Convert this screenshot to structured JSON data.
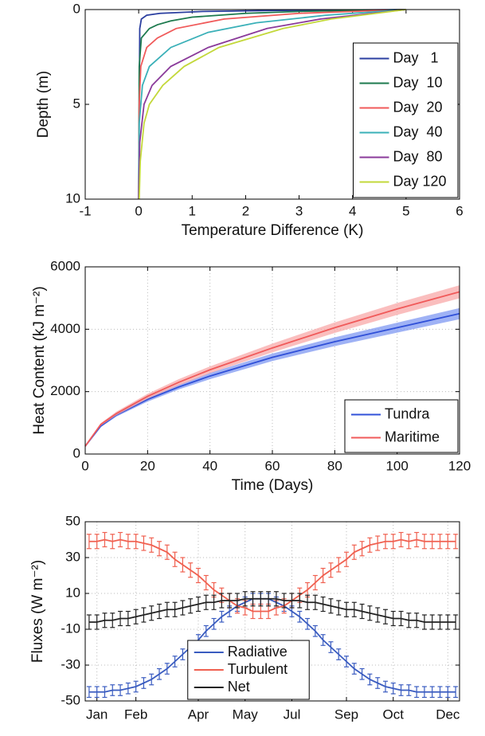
{
  "chart_data": [
    {
      "type": "line",
      "xlabel": "Temperature Difference (K)",
      "ylabel": "Depth (m)",
      "xlim": [
        -1,
        6
      ],
      "xticks": [
        -1,
        0,
        1,
        2,
        3,
        4,
        5,
        6
      ],
      "ylim": [
        10,
        0
      ],
      "yticks": [
        0,
        5,
        10
      ],
      "grid": false,
      "legend": "lower right",
      "series": [
        {
          "name": "Day   1",
          "color": "#2b3fa0",
          "x": [
            5,
            2.5,
            1.2,
            0.4,
            0.15,
            0.05,
            0.02,
            0
          ],
          "values": [
            0,
            0.05,
            0.1,
            0.2,
            0.3,
            0.5,
            1,
            10
          ]
        },
        {
          "name": "Day  10",
          "color": "#1d7a4e",
          "x": [
            5,
            3,
            2,
            1,
            0.6,
            0.35,
            0.2,
            0.05,
            0.01,
            0
          ],
          "values": [
            0,
            0.1,
            0.2,
            0.4,
            0.6,
            0.8,
            1,
            1.5,
            3,
            10
          ]
        },
        {
          "name": "Day  20",
          "color": "#f05a5a",
          "x": [
            5,
            3,
            1.6,
            0.7,
            0.35,
            0.15,
            0.04,
            0.01,
            0
          ],
          "values": [
            0,
            0.2,
            0.5,
            1,
            1.5,
            2,
            3,
            5,
            10
          ]
        },
        {
          "name": "Day  40",
          "color": "#3ab0b8",
          "x": [
            5,
            3.5,
            2.2,
            1.3,
            0.6,
            0.2,
            0.07,
            0.01,
            0
          ],
          "values": [
            0,
            0.3,
            0.7,
            1.2,
            2,
            3,
            4,
            6,
            10
          ]
        },
        {
          "name": "Day  80",
          "color": "#8a3a9a",
          "x": [
            5,
            3.4,
            2.4,
            1.3,
            0.6,
            0.25,
            0.1,
            0.02,
            0
          ],
          "values": [
            0,
            0.5,
            1,
            2,
            3,
            4,
            5,
            7,
            10
          ]
        },
        {
          "name": "Day 120",
          "color": "#c3d83a",
          "x": [
            5,
            3.6,
            2.7,
            1.5,
            0.85,
            0.45,
            0.2,
            0.1,
            0.03,
            0.01
          ],
          "values": [
            0,
            0.5,
            1,
            2,
            3,
            4,
            5,
            6,
            8,
            10
          ]
        }
      ]
    },
    {
      "type": "line",
      "xlabel": "Time (Days)",
      "ylabel": "Heat Content (kJ m⁻²)",
      "xlim": [
        0,
        120
      ],
      "xticks": [
        0,
        20,
        40,
        60,
        80,
        100,
        120
      ],
      "ylim": [
        0,
        6000
      ],
      "yticks": [
        0,
        2000,
        4000,
        6000
      ],
      "grid": true,
      "legend": "lower right",
      "x": [
        0,
        5,
        10,
        20,
        30,
        40,
        60,
        80,
        100,
        120
      ],
      "series": [
        {
          "name": "Tundra",
          "color": "#3050d8",
          "band_color": "#7f98f2",
          "values": [
            250,
            900,
            1250,
            1750,
            2150,
            2500,
            3100,
            3600,
            4050,
            4500
          ],
          "lower": [
            230,
            860,
            1200,
            1680,
            2070,
            2400,
            2980,
            3460,
            3890,
            4320
          ],
          "upper": [
            270,
            940,
            1300,
            1820,
            2230,
            2600,
            3220,
            3740,
            4210,
            4680
          ]
        },
        {
          "name": "Maritime",
          "color": "#f05a5a",
          "band_color": "#f8a8a8",
          "values": [
            250,
            950,
            1300,
            1850,
            2300,
            2700,
            3400,
            4050,
            4650,
            5200
          ],
          "lower": [
            230,
            910,
            1240,
            1770,
            2200,
            2590,
            3260,
            3880,
            4460,
            4990
          ],
          "upper": [
            270,
            990,
            1360,
            1930,
            2400,
            2810,
            3540,
            4220,
            4840,
            5410
          ]
        }
      ]
    },
    {
      "type": "line",
      "ylabel": "Fluxes (W m⁻²)",
      "ylim": [
        -50,
        50
      ],
      "yticks": [
        -50,
        -30,
        -10,
        10,
        30,
        50
      ],
      "grid": true,
      "legend": "lower center",
      "categories": [
        null,
        "Jan",
        null,
        null,
        null,
        null,
        "Feb",
        null,
        null,
        null,
        null,
        null,
        null,
        null,
        "Apr",
        null,
        null,
        null,
        null,
        null,
        "May",
        null,
        null,
        null,
        null,
        null,
        "Jul",
        null,
        null,
        null,
        null,
        null,
        null,
        "Sep",
        null,
        null,
        null,
        null,
        null,
        "Oct",
        null,
        null,
        null,
        null,
        null,
        null,
        "Dec",
        null
      ],
      "series": [
        {
          "name": "Radiative",
          "color": "#3a5cc0",
          "error": 3,
          "values": [
            -45,
            -45,
            -45,
            -44,
            -44,
            -43,
            -42,
            -40,
            -38,
            -35,
            -32,
            -28,
            -24,
            -20,
            -16,
            -11,
            -7,
            -3,
            0,
            3,
            5,
            7,
            7,
            7,
            5,
            3,
            0,
            -3,
            -7,
            -11,
            -16,
            -20,
            -24,
            -28,
            -32,
            -35,
            -38,
            -40,
            -42,
            -43,
            -44,
            -44,
            -45,
            -45,
            -45,
            -45,
            -45,
            -45
          ]
        },
        {
          "name": "Turbulent",
          "color": "#f06050",
          "error": 4,
          "values": [
            39,
            39,
            40,
            39,
            40,
            39,
            39,
            38,
            37,
            35,
            33,
            29,
            26,
            23,
            20,
            16,
            12,
            9,
            6,
            3,
            2,
            0,
            0,
            0,
            2,
            3,
            6,
            9,
            12,
            16,
            20,
            23,
            26,
            29,
            33,
            35,
            37,
            38,
            39,
            39,
            40,
            39,
            40,
            39,
            39,
            39,
            39,
            39
          ]
        },
        {
          "name": "Net",
          "color": "#222222",
          "error": 4,
          "values": [
            -6,
            -6,
            -5,
            -5,
            -4,
            -4,
            -3,
            -2,
            -1,
            0,
            1,
            1,
            2,
            3,
            4,
            5,
            5,
            6,
            6,
            6,
            7,
            7,
            7,
            7,
            7,
            6,
            6,
            6,
            5,
            5,
            4,
            3,
            2,
            1,
            1,
            0,
            -1,
            -2,
            -3,
            -4,
            -4,
            -5,
            -5,
            -6,
            -6,
            -6,
            -6,
            -6
          ]
        }
      ]
    }
  ]
}
